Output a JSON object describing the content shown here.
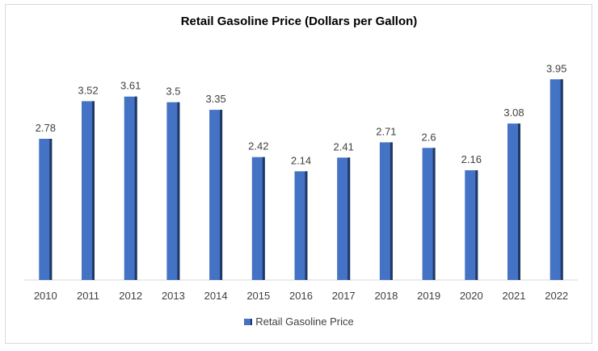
{
  "chart_data": {
    "type": "bar",
    "title": "Retail Gasoline Price (Dollars per Gallon)",
    "xlabel": "",
    "ylabel": "",
    "categories": [
      "2010",
      "2011",
      "2012",
      "2013",
      "2014",
      "2015",
      "2016",
      "2017",
      "2018",
      "2019",
      "2020",
      "2021",
      "2022"
    ],
    "series": [
      {
        "name": "Retail Gasoline Price",
        "values": [
          2.78,
          3.52,
          3.61,
          3.5,
          3.35,
          2.42,
          2.14,
          2.41,
          2.71,
          2.6,
          2.16,
          3.08,
          3.95
        ],
        "color": "#4472c4",
        "edge_color": "#1f3864"
      }
    ],
    "data_labels": [
      "2.78",
      "3.52",
      "3.61",
      "3.5",
      "3.35",
      "2.42",
      "2.14",
      "2.41",
      "2.71",
      "2.6",
      "2.16",
      "3.08",
      "3.95"
    ],
    "ylim": [
      0,
      4.4
    ],
    "grid": false,
    "legend_position": "bottom"
  }
}
